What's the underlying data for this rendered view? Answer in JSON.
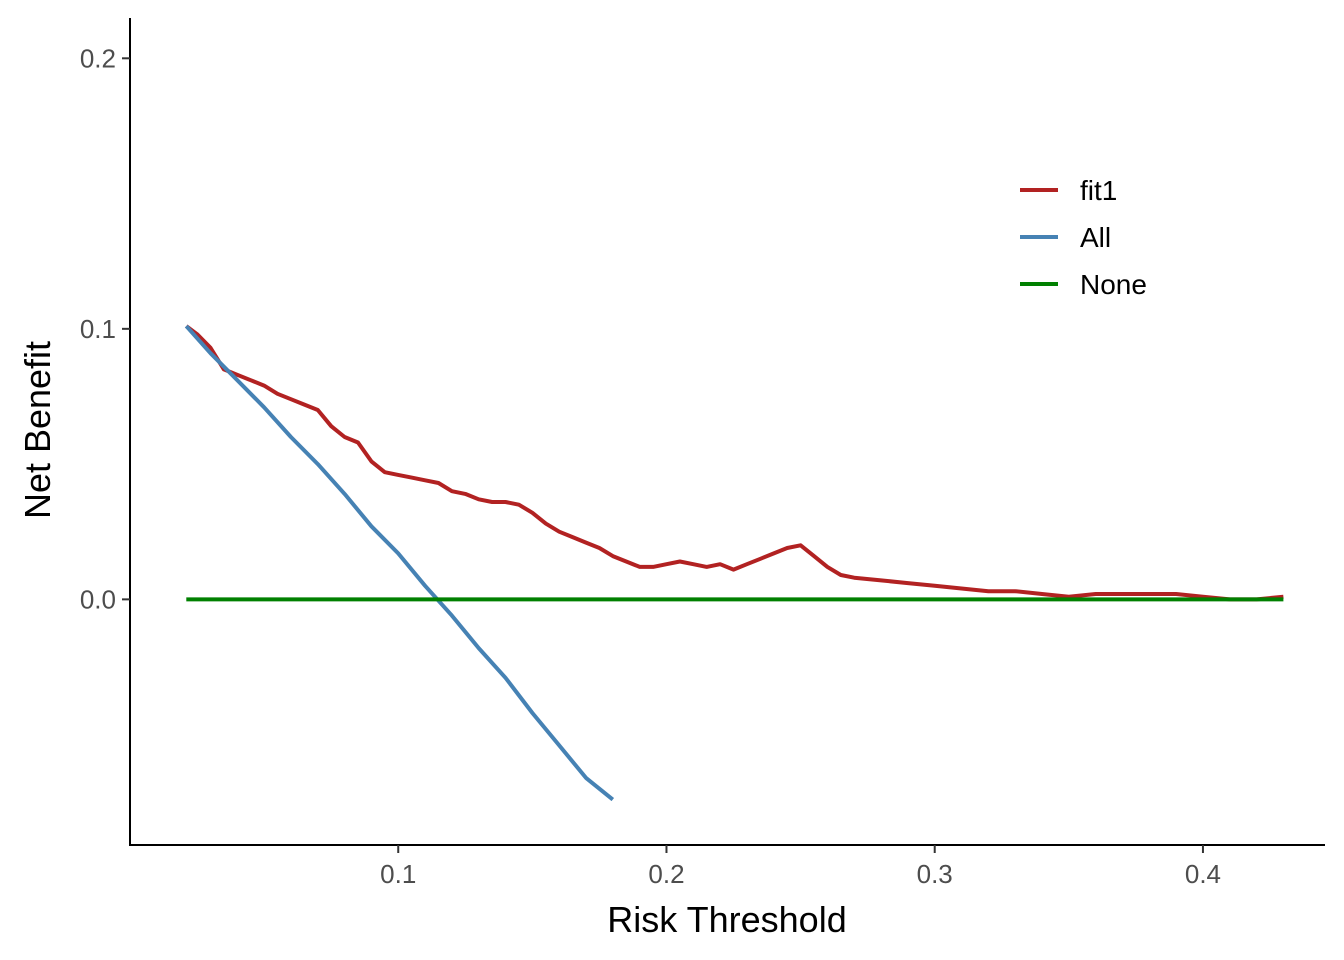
{
  "chart_data": {
    "type": "line",
    "xlabel": "Risk Threshold",
    "ylabel": "Net Benefit",
    "xlim": [
      0.0,
      0.4455
    ],
    "ylim": [
      -0.0908,
      0.2149
    ],
    "x_ticks": [
      0.1,
      0.2,
      0.3,
      0.4
    ],
    "x_tick_labels": [
      "0.1",
      "0.2",
      "0.3",
      "0.4"
    ],
    "y_ticks": [
      0.0,
      0.1,
      0.2
    ],
    "y_tick_labels": [
      "0.0",
      "0.1",
      "0.2"
    ],
    "grid": false,
    "legend_position": "top-right",
    "series": [
      {
        "name": "fit1",
        "color": "#B22222",
        "x": [
          0.021,
          0.025,
          0.03,
          0.035,
          0.04,
          0.045,
          0.05,
          0.055,
          0.06,
          0.065,
          0.07,
          0.075,
          0.08,
          0.085,
          0.09,
          0.095,
          0.1,
          0.105,
          0.11,
          0.115,
          0.12,
          0.125,
          0.13,
          0.135,
          0.14,
          0.145,
          0.15,
          0.155,
          0.16,
          0.165,
          0.17,
          0.175,
          0.18,
          0.185,
          0.19,
          0.195,
          0.2,
          0.205,
          0.21,
          0.215,
          0.22,
          0.225,
          0.23,
          0.235,
          0.24,
          0.245,
          0.25,
          0.255,
          0.26,
          0.265,
          0.27,
          0.28,
          0.29,
          0.3,
          0.31,
          0.32,
          0.33,
          0.34,
          0.35,
          0.36,
          0.37,
          0.38,
          0.39,
          0.4,
          0.41,
          0.42,
          0.43
        ],
        "y": [
          0.101,
          0.098,
          0.093,
          0.085,
          0.083,
          0.081,
          0.079,
          0.076,
          0.074,
          0.072,
          0.07,
          0.064,
          0.06,
          0.058,
          0.051,
          0.047,
          0.046,
          0.045,
          0.044,
          0.043,
          0.04,
          0.039,
          0.037,
          0.036,
          0.036,
          0.035,
          0.032,
          0.028,
          0.025,
          0.023,
          0.021,
          0.019,
          0.016,
          0.014,
          0.012,
          0.012,
          0.013,
          0.014,
          0.013,
          0.012,
          0.013,
          0.011,
          0.013,
          0.015,
          0.017,
          0.019,
          0.02,
          0.016,
          0.012,
          0.009,
          0.008,
          0.007,
          0.006,
          0.005,
          0.004,
          0.003,
          0.003,
          0.002,
          0.001,
          0.002,
          0.002,
          0.002,
          0.002,
          0.001,
          0.0,
          0.0,
          0.001
        ]
      },
      {
        "name": "All",
        "color": "#4682B4",
        "x": [
          0.021,
          0.03,
          0.04,
          0.05,
          0.06,
          0.07,
          0.08,
          0.09,
          0.1,
          0.11,
          0.12,
          0.13,
          0.14,
          0.15,
          0.16,
          0.17,
          0.18
        ],
        "y": [
          0.101,
          0.091,
          0.081,
          0.071,
          0.06,
          0.05,
          0.039,
          0.027,
          0.017,
          0.005,
          -0.006,
          -0.018,
          -0.029,
          -0.042,
          -0.054,
          -0.066,
          -0.074
        ]
      },
      {
        "name": "None",
        "color": "#008000",
        "x": [
          0.021,
          0.43
        ],
        "y": [
          0.0,
          0.0
        ]
      }
    ]
  }
}
